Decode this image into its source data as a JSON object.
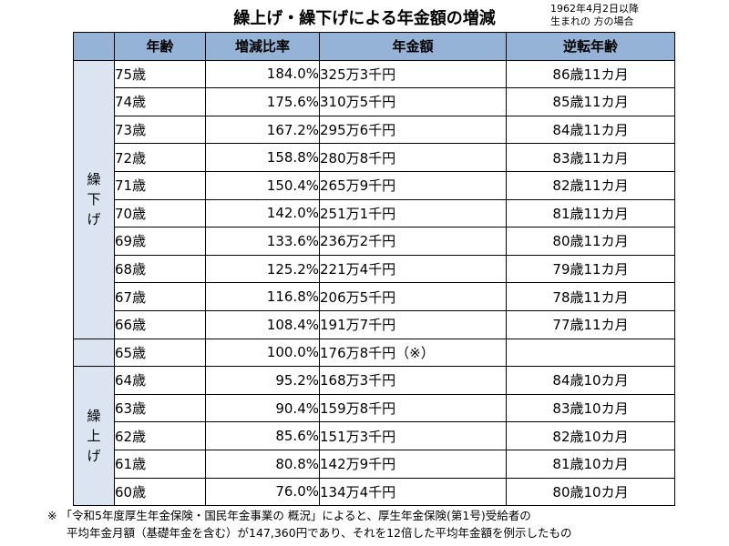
{
  "title": "繰上げ・繰下げによる年金額の増減",
  "subtitle_line1": "1962年4月2日以降",
  "subtitle_line2": "生まれの 方の場合",
  "headers": [
    "",
    "年齢",
    "増減比率",
    "年金額",
    "逆転年齢"
  ],
  "deferral_label": [
    "繰",
    "下",
    "げ"
  ],
  "advance_label": [
    "繰",
    "上",
    "げ"
  ],
  "rows": [
    {
      "age": "75歳",
      "rate": "184.0%",
      "amount": "325万3千円",
      "reversal": "86歳11カ月"
    },
    {
      "age": "74歳",
      "rate": "175.6%",
      "amount": "310万5千円",
      "reversal": "85歳11カ月"
    },
    {
      "age": "73歳",
      "rate": "167.2%",
      "amount": "295万6千円",
      "reversal": "84歳11カ月"
    },
    {
      "age": "72歳",
      "rate": "158.8%",
      "amount": "280万8千円",
      "reversal": "83歳11カ月"
    },
    {
      "age": "71歳",
      "rate": "150.4%",
      "amount": "265万9千円",
      "reversal": "82歳11カ月"
    },
    {
      "age": "70歳",
      "rate": "142.0%",
      "amount": "251万1千円",
      "reversal": "81歳11カ月"
    },
    {
      "age": "69歳",
      "rate": "133.6%",
      "amount": "236万2千円",
      "reversal": "80歳11カ月"
    },
    {
      "age": "68歳",
      "rate": "125.2%",
      "amount": "221万4千円",
      "reversal": "79歳11カ月"
    },
    {
      "age": "67歳",
      "rate": "116.8%",
      "amount": "206万5千円",
      "reversal": "78歳11カ月"
    },
    {
      "age": "66歳",
      "rate": "108.4%",
      "amount": "191万7千円",
      "reversal": "77歳11カ月"
    },
    {
      "age": "65歳",
      "rate": "100.0%",
      "amount": "176万8千円（※）",
      "reversal": ""
    },
    {
      "age": "64歳",
      "rate": "95.2%",
      "amount": "168万3千円",
      "reversal": "84歳10カ月"
    },
    {
      "age": "63歳",
      "rate": "90.4%",
      "amount": "159万8千円",
      "reversal": "83歳10カ月"
    },
    {
      "age": "62歳",
      "rate": "85.6%",
      "amount": "151万3千円",
      "reversal": "82歳10カ月"
    },
    {
      "age": "61歳",
      "rate": "80.8%",
      "amount": "142万9千円",
      "reversal": "81歳10カ月"
    },
    {
      "age": "60歳",
      "rate": "76.0%",
      "amount": "134万4千円",
      "reversal": "80歳10カ月"
    }
  ],
  "colors": {
    "header_bg": "#95b3d7",
    "category_bg": "#dbe5f1"
  },
  "note_line1": "※ 「令和5年度厚生年金保険・国民年金事業の 概況」によると、厚生年金保険(第1号)受給者の",
  "note_line2": "平均年金月額（基礎年金を含む）が147,360円であり、それを12倍した平均年金額を例示したもの"
}
